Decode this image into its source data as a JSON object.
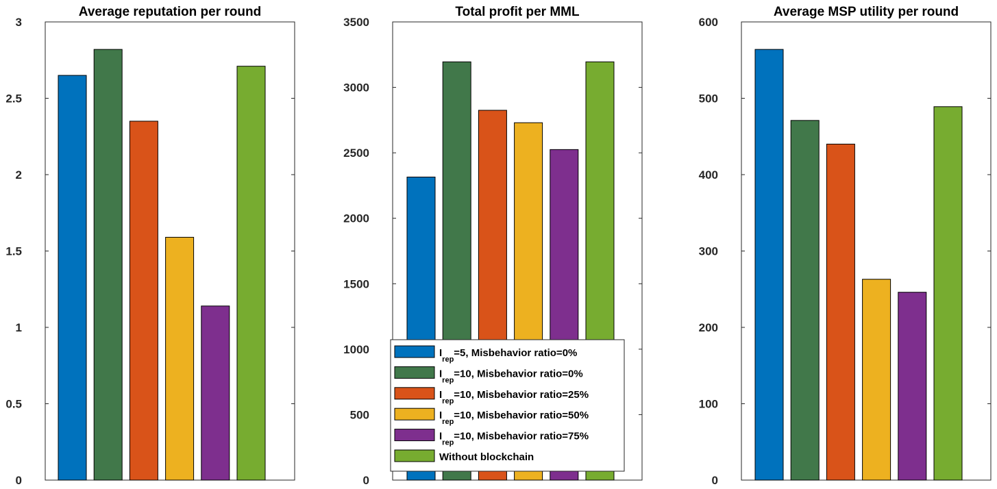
{
  "chart_data": [
    {
      "type": "bar",
      "title": "Average reputation per round",
      "xlabel": "",
      "ylabel": "",
      "ylim": [
        0,
        3
      ],
      "yticks": [
        0,
        0.5,
        1,
        1.5,
        2,
        2.5,
        3
      ],
      "ytick_labels": [
        "0",
        "0.5",
        "1",
        "1.5",
        "2",
        "2.5",
        "3"
      ],
      "categories": [
        "Irep=5, Misbehavior ratio=0%",
        "Irep=10, Misbehavior ratio=0%",
        "Irep=10, Misbehavior ratio=25%",
        "Irep=10, Misbehavior ratio=50%",
        "Irep=10, Misbehavior ratio=75%",
        "Without blockchain"
      ],
      "values": [
        2.65,
        2.82,
        2.35,
        1.59,
        1.14,
        2.71
      ]
    },
    {
      "type": "bar",
      "title": "Total profit per MML",
      "xlabel": "",
      "ylabel": "",
      "ylim": [
        0,
        3500
      ],
      "yticks": [
        0,
        500,
        1000,
        1500,
        2000,
        2500,
        3000,
        3500
      ],
      "ytick_labels": [
        "0",
        "500",
        "1000",
        "1500",
        "2000",
        "2500",
        "3000",
        "3500"
      ],
      "categories": [
        "Irep=5, Misbehavior ratio=0%",
        "Irep=10, Misbehavior ratio=0%",
        "Irep=10, Misbehavior ratio=25%",
        "Irep=10, Misbehavior ratio=50%",
        "Irep=10, Misbehavior ratio=75%",
        "Without blockchain"
      ],
      "values": [
        2315,
        3195,
        2825,
        2730,
        2525,
        3195
      ]
    },
    {
      "type": "bar",
      "title": "Average MSP utility per round",
      "xlabel": "",
      "ylabel": "",
      "ylim": [
        0,
        600
      ],
      "yticks": [
        0,
        100,
        200,
        300,
        400,
        500,
        600
      ],
      "ytick_labels": [
        "0",
        "100",
        "200",
        "300",
        "400",
        "500",
        "600"
      ],
      "categories": [
        "Irep=5, Misbehavior ratio=0%",
        "Irep=10, Misbehavior ratio=0%",
        "Irep=10, Misbehavior ratio=25%",
        "Irep=10, Misbehavior ratio=50%",
        "Irep=10, Misbehavior ratio=75%",
        "Without blockchain"
      ],
      "values": [
        564,
        471,
        440,
        263,
        246,
        489
      ]
    }
  ],
  "series_colors": [
    "#0072BD",
    "#41784A",
    "#D95319",
    "#EDB120",
    "#7E2F8E",
    "#77AC30"
  ],
  "legend": {
    "location": "bottom of middle plot",
    "entries": [
      {
        "main": "I",
        "sub": "rep",
        "rest": "=5, Misbehavior ratio=0%"
      },
      {
        "main": "I",
        "sub": "rep",
        "rest": "=10, Misbehavior ratio=0%"
      },
      {
        "main": "I",
        "sub": "rep",
        "rest": "=10, Misbehavior ratio=25%"
      },
      {
        "main": "I",
        "sub": "rep",
        "rest": "=10, Misbehavior ratio=50%"
      },
      {
        "main": "I",
        "sub": "rep",
        "rest": "=10, Misbehavior ratio=75%"
      },
      {
        "main": "Without blockchain",
        "sub": "",
        "rest": ""
      }
    ]
  }
}
